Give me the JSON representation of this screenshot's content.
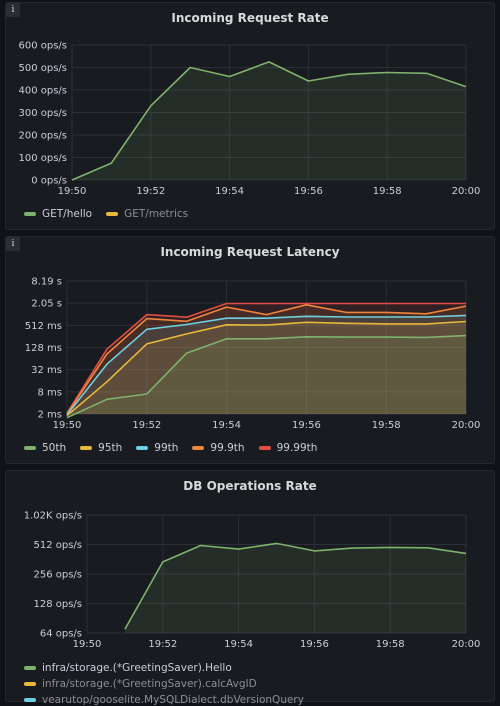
{
  "panels": [
    {
      "title": "Incoming Request Rate",
      "legend": [
        {
          "label": "GET/hello",
          "color": "#7eb26d",
          "dim": false
        },
        {
          "label": "GET/metrics",
          "color": "#eab839",
          "dim": true
        }
      ]
    },
    {
      "title": "Incoming Request Latency",
      "legend": [
        {
          "label": "50th",
          "color": "#7eb26d",
          "dim": false
        },
        {
          "label": "95th",
          "color": "#eab839",
          "dim": false
        },
        {
          "label": "99th",
          "color": "#6ed0e0",
          "dim": false
        },
        {
          "label": "99.9th",
          "color": "#ef843c",
          "dim": false
        },
        {
          "label": "99.99th",
          "color": "#e24d42",
          "dim": false
        }
      ]
    },
    {
      "title": "DB Operations Rate",
      "legend": [
        {
          "label": "infra/storage.(*GreetingSaver).Hello",
          "color": "#7eb26d",
          "dim": false
        },
        {
          "label": "infra/storage.(*GreetingSaver).calcAvgID",
          "color": "#eab839",
          "dim": true
        },
        {
          "label": "vearutop/gooselite.MySQLDialect.dbVersionQuery",
          "color": "#6ed0e0",
          "dim": true
        }
      ]
    }
  ],
  "chart_data": [
    {
      "type": "line",
      "title": "Incoming Request Rate",
      "x": [
        "19:50",
        "19:51",
        "19:52",
        "19:53",
        "19:54",
        "19:55",
        "19:56",
        "19:57",
        "19:58",
        "19:59",
        "20:00"
      ],
      "xticks": [
        "19:50",
        "19:52",
        "19:54",
        "19:56",
        "19:58",
        "20:00"
      ],
      "ylim": [
        0,
        600
      ],
      "yscale": "linear",
      "yticks": [
        0,
        100,
        200,
        300,
        400,
        500,
        600
      ],
      "ytick_labels": [
        "0 ops/s",
        "100 ops/s",
        "200 ops/s",
        "300 ops/s",
        "400 ops/s",
        "500 ops/s",
        "600 ops/s"
      ],
      "fill": true,
      "grid": true,
      "legend_position": "bottom",
      "series": [
        {
          "name": "GET/hello",
          "color": "#7eb26d",
          "values": [
            0,
            75,
            330,
            500,
            460,
            525,
            440,
            470,
            478,
            474,
            415
          ]
        }
      ]
    },
    {
      "type": "line",
      "title": "Incoming Request Latency",
      "x": [
        "19:50",
        "19:51",
        "19:52",
        "19:53",
        "19:54",
        "19:55",
        "19:56",
        "19:57",
        "19:58",
        "19:59",
        "20:00"
      ],
      "xticks": [
        "19:50",
        "19:52",
        "19:54",
        "19:56",
        "19:58",
        "20:00"
      ],
      "ylim": [
        2,
        8192
      ],
      "yscale": "log2",
      "yticks": [
        2,
        8,
        32,
        128,
        512,
        2048,
        8192
      ],
      "ytick_labels": [
        "2 ms",
        "8 ms",
        "32 ms",
        "128 ms",
        "512 ms",
        "2.05 s",
        "8.19 s"
      ],
      "fill": true,
      "grid": true,
      "legend_position": "bottom",
      "series": [
        {
          "name": "50th",
          "color": "#7eb26d",
          "values": [
            1.6,
            5,
            7,
            90,
            220,
            220,
            250,
            245,
            245,
            240,
            270
          ]
        },
        {
          "name": "95th",
          "color": "#eab839",
          "values": [
            1.8,
            15,
            160,
            300,
            530,
            520,
            620,
            580,
            560,
            560,
            650
          ]
        },
        {
          "name": "99th",
          "color": "#6ed0e0",
          "values": [
            1.9,
            45,
            400,
            540,
            800,
            800,
            900,
            860,
            860,
            860,
            950
          ]
        },
        {
          "name": "99.9th",
          "color": "#ef843c",
          "values": [
            2,
            85,
            780,
            660,
            1600,
            1000,
            1850,
            1150,
            1150,
            1050,
            1700
          ]
        },
        {
          "name": "99.99th",
          "color": "#e24d42",
          "values": [
            2.1,
            115,
            1000,
            850,
            2000,
            2000,
            2000,
            2000,
            2000,
            2000,
            2000
          ]
        }
      ]
    },
    {
      "type": "line",
      "title": "DB Operations Rate",
      "x": [
        "19:50",
        "19:51",
        "19:52",
        "19:53",
        "19:54",
        "19:55",
        "19:56",
        "19:57",
        "19:58",
        "19:59",
        "20:00"
      ],
      "xticks": [
        "19:50",
        "19:52",
        "19:54",
        "19:56",
        "19:58",
        "20:00"
      ],
      "ylim": [
        64,
        1024
      ],
      "yscale": "log2",
      "yticks": [
        64,
        128,
        256,
        512,
        1024
      ],
      "ytick_labels": [
        "64 ops/s",
        "128 ops/s",
        "256 ops/s",
        "512 ops/s",
        "1.02K ops/s"
      ],
      "fill": true,
      "grid": true,
      "legend_position": "bottom",
      "series": [
        {
          "name": "infra/storage.(*GreetingSaver).Hello",
          "color": "#7eb26d",
          "values": [
            null,
            70,
            340,
            500,
            460,
            525,
            440,
            470,
            478,
            474,
            415
          ]
        }
      ]
    }
  ]
}
